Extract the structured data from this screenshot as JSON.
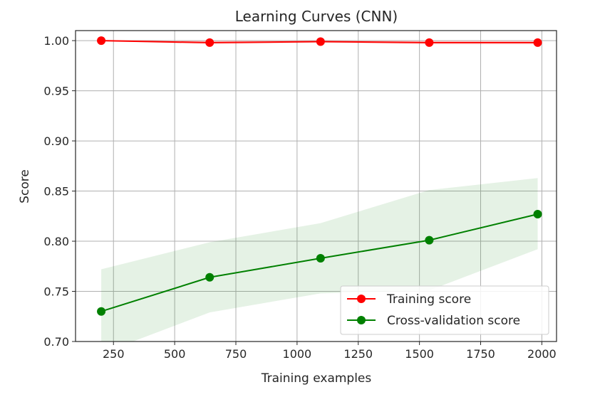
{
  "chart_data": {
    "type": "line",
    "title": "Learning Curves (CNN)",
    "xlabel": "Training examples",
    "ylabel": "Score",
    "xlim": [
      95,
      2060
    ],
    "ylim": [
      0.7,
      1.01
    ],
    "grid": true,
    "legend_position": "lower right",
    "x_ticks": [
      250,
      500,
      750,
      1000,
      1250,
      1500,
      1750,
      2000
    ],
    "y_ticks": [
      0.7,
      0.75,
      0.8,
      0.85,
      0.9,
      0.95,
      1.0
    ],
    "x_tick_labels": [
      "250",
      "500",
      "750",
      "1000",
      "1250",
      "1500",
      "1750",
      "2000"
    ],
    "y_tick_labels": [
      "0.70",
      "0.75",
      "0.80",
      "0.85",
      "0.90",
      "0.95",
      "1.00"
    ],
    "x": [
      200,
      643,
      1096,
      1540,
      1983
    ],
    "series": [
      {
        "name": "Training score",
        "color": "#ff0000",
        "values": [
          1.0,
          0.998,
          0.999,
          0.998,
          0.998
        ],
        "band_lower": [
          1.0,
          0.996,
          0.998,
          0.996,
          0.996
        ],
        "band_upper": [
          1.0,
          1.0,
          1.0,
          1.0,
          1.0
        ]
      },
      {
        "name": "Cross-validation score",
        "color": "#008000",
        "values": [
          0.73,
          0.764,
          0.783,
          0.801,
          0.827
        ],
        "band_lower": [
          0.688,
          0.729,
          0.748,
          0.751,
          0.792
        ],
        "band_upper": [
          0.772,
          0.799,
          0.818,
          0.851,
          0.863
        ]
      }
    ]
  }
}
